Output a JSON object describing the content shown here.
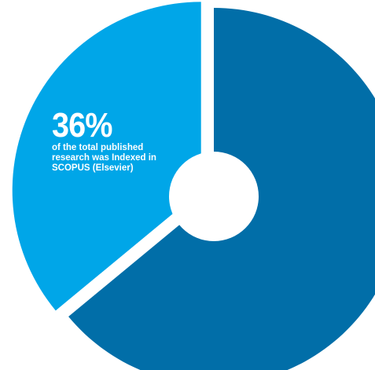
{
  "chart_data": {
    "type": "pie",
    "variant": "donut",
    "slices": [
      {
        "value": 36,
        "color": "#00a6e8",
        "exploded": true
      },
      {
        "value": 64,
        "color": "#016ea8",
        "exploded": false
      }
    ],
    "annotation": {
      "value_text": "36%",
      "description": "of the total published research was Indexed in SCOPUS (Elsevier)"
    }
  },
  "colors": {
    "slice_light": "#00a6e8",
    "slice_dark": "#016ea8",
    "hole": "#ffffff",
    "label_text": "#ffffff"
  }
}
